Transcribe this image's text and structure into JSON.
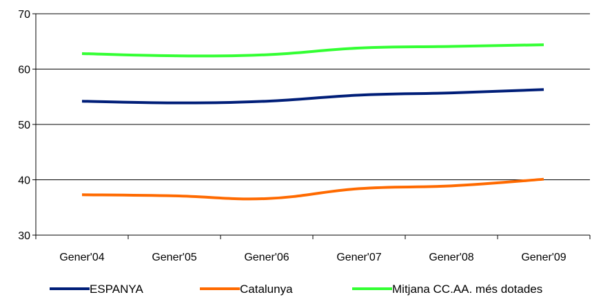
{
  "chart_data": {
    "type": "line",
    "categories": [
      "Gener'04",
      "Gener'05",
      "Gener'06",
      "Gener'07",
      "Gener'08",
      "Gener'09"
    ],
    "series": [
      {
        "name": "ESPANYA",
        "color": "#001E78",
        "values": [
          54.2,
          53.9,
          54.2,
          55.3,
          55.7,
          56.3
        ]
      },
      {
        "name": "Catalunya",
        "color": "#FF6A00",
        "values": [
          37.3,
          37.1,
          36.6,
          38.4,
          38.9,
          40.1
        ]
      },
      {
        "name": "Mitjana CC.AA. més dotades",
        "color": "#33FF33",
        "values": [
          62.8,
          62.4,
          62.6,
          63.8,
          64.1,
          64.4
        ]
      }
    ],
    "ylim": [
      30,
      70
    ],
    "yticks": [
      "30",
      "40",
      "50",
      "60",
      "70"
    ],
    "grid": "horizontal",
    "legend": "bottom",
    "title": "",
    "xlabel": "",
    "ylabel": ""
  }
}
